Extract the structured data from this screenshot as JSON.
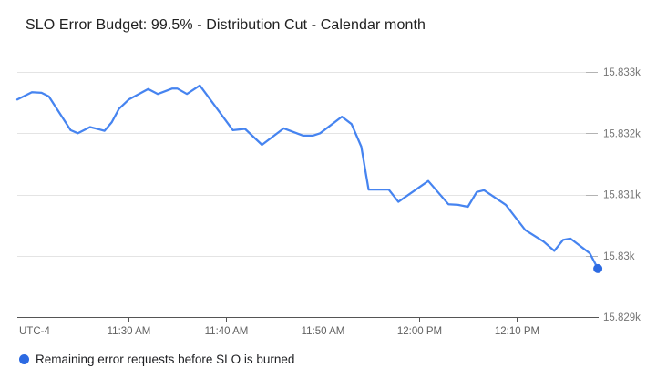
{
  "title": "SLO Error Budget: 99.5% - Distribution Cut - Calendar month",
  "legend": {
    "label": "Remaining error requests before SLO is burned"
  },
  "colors": {
    "line": "#4684f0",
    "marker": "#2c6ae2",
    "legend_dot": "#2c6ae2",
    "gridline": "#e4e4e4",
    "axis_line": "#555555",
    "right_tick": "#b3b3b3",
    "x_label": "#616161",
    "y_label": "#757575",
    "title_text": "#212121"
  },
  "chart_data": {
    "type": "line",
    "title": "SLO Error Budget: 99.5% - Distribution Cut - Calendar month",
    "grid": true,
    "legend_position": "bottom-left",
    "x_axis": {
      "timezone_label": "UTC-4",
      "tick_labels": [
        "11:30 AM",
        "11:40 AM",
        "11:50 AM",
        "12:00 PM",
        "12:10 PM"
      ],
      "range": [
        "11:18:30 AM",
        "12:18:30 PM"
      ]
    },
    "y_axis": {
      "ticks": [
        {
          "label": "15.833k",
          "value": 15833
        },
        {
          "label": "15.832k",
          "value": 15832
        },
        {
          "label": "15.831k",
          "value": 15831
        },
        {
          "label": "15.83k",
          "value": 15830
        },
        {
          "label": "15.829k",
          "value": 15829
        }
      ],
      "range": [
        15829,
        15833.2
      ],
      "label_side": "right"
    },
    "series": [
      {
        "name": "Remaining error requests before SLO is burned",
        "end_marker": true,
        "points": [
          [
            "11:18:30 AM",
            15832.55
          ],
          [
            "11:20:00 AM",
            15832.67
          ],
          [
            "11:21:00 AM",
            15832.66
          ],
          [
            "11:21:45 AM",
            15832.6
          ],
          [
            "11:24:00 AM",
            15832.05
          ],
          [
            "11:24:45 AM",
            15832.0
          ],
          [
            "11:26:00 AM",
            15832.1
          ],
          [
            "11:27:00 AM",
            15832.06
          ],
          [
            "11:27:30 AM",
            15832.04
          ],
          [
            "11:28:15 AM",
            15832.18
          ],
          [
            "11:29:00 AM",
            15832.4
          ],
          [
            "11:30:00 AM",
            15832.55
          ],
          [
            "11:32:00 AM",
            15832.72
          ],
          [
            "11:33:00 AM",
            15832.64
          ],
          [
            "11:34:30 AM",
            15832.73
          ],
          [
            "11:35:00 AM",
            15832.73
          ],
          [
            "11:36:00 AM",
            15832.64
          ],
          [
            "11:37:20 AM",
            15832.78
          ],
          [
            "11:40:45 AM",
            15832.05
          ],
          [
            "11:42:00 AM",
            15832.07
          ],
          [
            "11:43:45 AM",
            15831.81
          ],
          [
            "11:46:00 AM",
            15832.08
          ],
          [
            "11:48:00 AM",
            15831.96
          ],
          [
            "11:49:00 AM",
            15831.96
          ],
          [
            "11:49:45 AM",
            15832.0
          ],
          [
            "11:52:00 AM",
            15832.27
          ],
          [
            "11:53:00 AM",
            15832.15
          ],
          [
            "11:54:00 AM",
            15831.78
          ],
          [
            "11:54:45 AM",
            15831.08
          ],
          [
            "11:56:50 AM",
            15831.08
          ],
          [
            "11:57:50 AM",
            15830.88
          ],
          [
            "12:00:55 PM",
            15831.22
          ],
          [
            "12:03:00 PM",
            15830.84
          ],
          [
            "12:04:00 PM",
            15830.83
          ],
          [
            "12:05:00 PM",
            15830.8
          ],
          [
            "12:05:55 PM",
            15831.04
          ],
          [
            "12:06:40 PM",
            15831.07
          ],
          [
            "12:08:55 PM",
            15830.83
          ],
          [
            "12:10:55 PM",
            15830.42
          ],
          [
            "12:12:50 PM",
            15830.23
          ],
          [
            "12:13:55 PM",
            15830.08
          ],
          [
            "12:14:50 PM",
            15830.26
          ],
          [
            "12:15:35 PM",
            15830.28
          ],
          [
            "12:16:55 PM",
            15830.12
          ],
          [
            "12:17:35 PM",
            15830.04
          ],
          [
            "12:18:25 PM",
            15829.79
          ]
        ]
      }
    ]
  }
}
